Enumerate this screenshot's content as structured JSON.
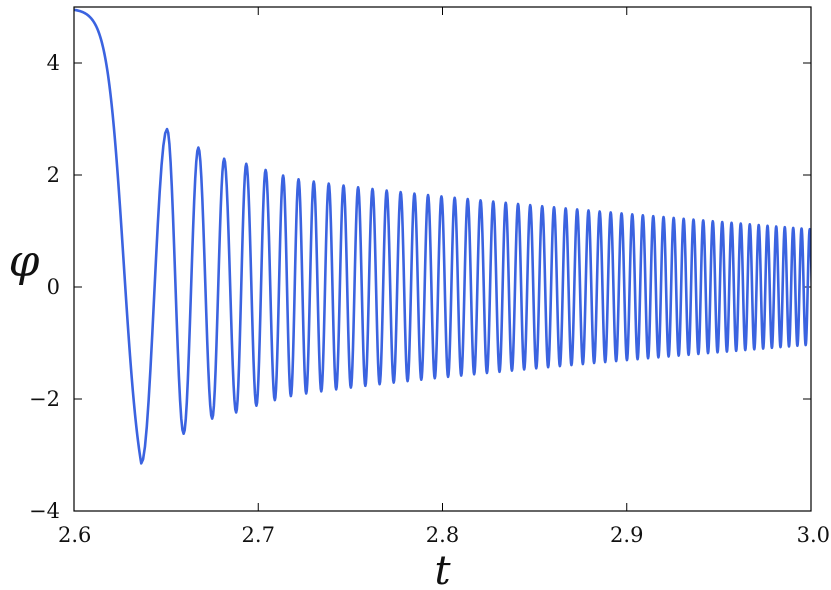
{
  "chart_data": {
    "type": "line",
    "xlabel": "t",
    "ylabel": "φ",
    "xlim": [
      2.6,
      3.0
    ],
    "ylim": [
      -4,
      5
    ],
    "grid": false,
    "x_ticks": [
      {
        "value": 2.6,
        "label": "2.6"
      },
      {
        "value": 2.7,
        "label": "2.7"
      },
      {
        "value": 2.8,
        "label": "2.8"
      },
      {
        "value": 2.9,
        "label": "2.9"
      },
      {
        "value": 3.0,
        "label": "3.0"
      }
    ],
    "y_ticks": [
      {
        "value": 4,
        "label": "4"
      },
      {
        "value": 2,
        "label": "2"
      },
      {
        "value": 0,
        "label": "0"
      },
      {
        "value": -2,
        "label": "−2"
      },
      {
        "value": -4,
        "label": "−4"
      }
    ],
    "series": [
      {
        "color": "#3b63e0",
        "initial_value": 4.95,
        "drop_time": 2.627,
        "peaks": [
          {
            "t": 2.6365,
            "y": -3.15
          },
          {
            "t": 2.6505,
            "y": 2.82
          },
          {
            "t": 2.6595,
            "y": -2.62
          },
          {
            "t": 2.6675,
            "y": 2.49
          },
          {
            "t": 2.675,
            "y": -2.35
          },
          {
            "t": 2.6815,
            "y": 2.29
          },
          {
            "t": 2.688,
            "y": -2.24
          },
          {
            "t": 2.6935,
            "y": 2.2
          },
          {
            "t": 2.699,
            "y": -2.12
          },
          {
            "t": 2.704,
            "y": 2.09
          },
          {
            "t": 2.709,
            "y": -2.02
          },
          {
            "t": 2.7135,
            "y": 1.99
          }
        ],
        "tail": {
          "t_start": 2.7135,
          "t_end": 3.0,
          "amp_start": 1.98,
          "amp_end": 1.03,
          "half_period_start": 0.0042,
          "half_period_end": 0.0022
        }
      }
    ]
  }
}
